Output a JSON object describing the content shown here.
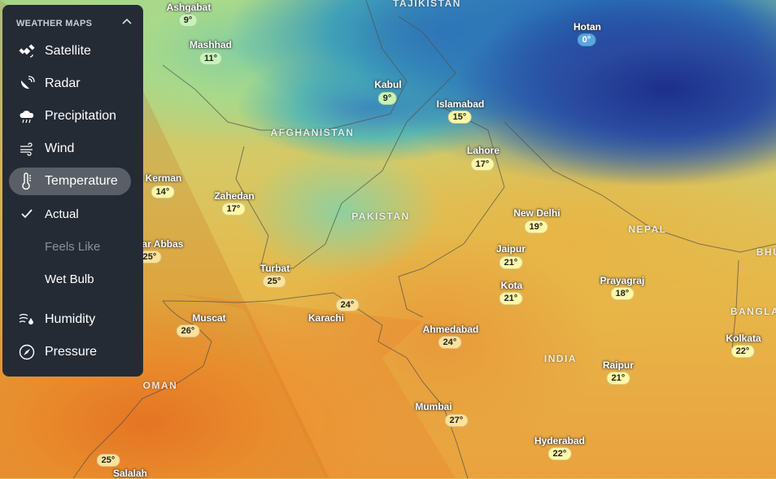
{
  "panel": {
    "title": "WEATHER MAPS",
    "items": [
      {
        "label": "Satellite",
        "icon": "satellite-icon"
      },
      {
        "label": "Radar",
        "icon": "radar-dish-icon"
      },
      {
        "label": "Precipitation",
        "icon": "rain-cloud-icon"
      },
      {
        "label": "Wind",
        "icon": "wind-icon"
      },
      {
        "label": "Temperature",
        "icon": "thermometer-icon",
        "active": true
      },
      {
        "label": "Actual",
        "checked": true
      },
      {
        "label": "Feels Like",
        "disabled": true
      },
      {
        "label": "Wet Bulb"
      },
      {
        "label": "Humidity",
        "icon": "humidity-icon"
      },
      {
        "label": "Pressure",
        "icon": "compass-gauge-icon"
      }
    ]
  },
  "countries": [
    "TAJIKISTAN",
    "AFGHANISTAN",
    "PAKISTAN",
    "NEPAL",
    "INDIA",
    "OMAN",
    "BANGLA",
    "BHU"
  ],
  "cities": [
    {
      "name": "Ashgabat",
      "temp": "9°"
    },
    {
      "name": "Mashhad",
      "temp": "11°"
    },
    {
      "name": "Kabul",
      "temp": "9°"
    },
    {
      "name": "Islamabad",
      "temp": "15°"
    },
    {
      "name": "Hotan",
      "temp": "0°"
    },
    {
      "name": "Lahore",
      "temp": "17°"
    },
    {
      "name": "Kerman",
      "temp": "14°"
    },
    {
      "name": "Zahedan",
      "temp": "17°"
    },
    {
      "name": "ar Abbas",
      "temp": "25°"
    },
    {
      "name": "Turbat",
      "temp": "25°"
    },
    {
      "name": "Karachi",
      "temp": "24°"
    },
    {
      "name": "Muscat",
      "temp": "26°"
    },
    {
      "name": "New Delhi",
      "temp": "19°"
    },
    {
      "name": "Jaipur",
      "temp": "21°"
    },
    {
      "name": "Kota",
      "temp": "21°"
    },
    {
      "name": "Prayagraj",
      "temp": "18°"
    },
    {
      "name": "Ahmedabad",
      "temp": "24°"
    },
    {
      "name": "Kolkata",
      "temp": "22°"
    },
    {
      "name": "Raipur",
      "temp": "21°"
    },
    {
      "name": "Mumbai",
      "temp": "27°"
    },
    {
      "name": "Hyderabad",
      "temp": "22°"
    },
    {
      "name": "Salalah",
      "temp": "25°"
    }
  ]
}
